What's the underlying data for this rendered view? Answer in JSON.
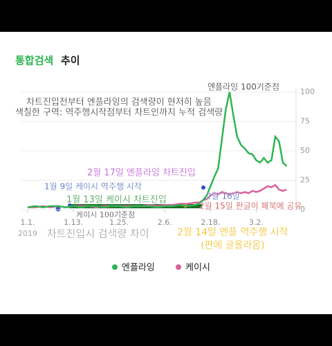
{
  "chart_data": {
    "type": "line",
    "title_parts": [
      "통합검색",
      "추이"
    ],
    "x": [
      0,
      2,
      4,
      6,
      8,
      10,
      12,
      14,
      16,
      18,
      20,
      22,
      24,
      26,
      28,
      30,
      32,
      34,
      36,
      38,
      40,
      42,
      44,
      45,
      46,
      47,
      48,
      49,
      50,
      51,
      52,
      53,
      54,
      55,
      56,
      57,
      58,
      59,
      60,
      61,
      62,
      63,
      64,
      65,
      66,
      67,
      68
    ],
    "xlim": [
      0,
      69
    ],
    "xticks": [
      {
        "value": 0,
        "label": "1.1."
      },
      {
        "value": 12,
        "label": "1.13."
      },
      {
        "value": 24,
        "label": "1.25."
      },
      {
        "value": 36,
        "label": "2.6."
      },
      {
        "value": 48,
        "label": "2.18."
      },
      {
        "value": 60,
        "label": "3.2."
      }
    ],
    "x_year": "2019",
    "ylim": [
      0,
      100
    ],
    "yticks": [
      0,
      25,
      50,
      75,
      100
    ],
    "grid": true,
    "series": [
      {
        "name": "엔플라잉",
        "color": "#2db552",
        "values": [
          2,
          3,
          2,
          3,
          3,
          2,
          3,
          2,
          3,
          3,
          2,
          3,
          3,
          2,
          3,
          3,
          3,
          2,
          3,
          3,
          4,
          3,
          4,
          5,
          8,
          12,
          20,
          28,
          35,
          60,
          85,
          100,
          80,
          62,
          55,
          52,
          48,
          47,
          42,
          40,
          44,
          40,
          42,
          62,
          58,
          40,
          37
        ]
      },
      {
        "name": "케이시",
        "color": "#d8609c",
        "values": [
          2,
          2,
          3,
          2,
          3,
          2,
          3,
          3,
          3,
          2,
          3,
          3,
          3,
          3,
          3,
          3,
          4,
          3,
          4,
          4,
          5,
          5,
          6,
          6,
          8,
          9,
          12,
          14,
          13,
          15,
          14,
          13,
          14,
          15,
          14,
          15,
          14,
          16,
          15,
          16,
          18,
          20,
          19,
          21,
          17,
          16,
          17
        ]
      }
    ],
    "annotations": [
      {
        "text": "엔플라잉 100기준점",
        "color": "#111111"
      },
      {
        "text": "차트진입전부터 엔플라잉의 검색량이 현저히 높음",
        "color": "#222222"
      },
      {
        "text": "색칠한 구역: 역주행시작점부터 차트인까지 누적 검색량",
        "color": "#222222"
      },
      {
        "text": "2월 17일 엔플라잉 차트진입",
        "color": "#b03ad0"
      },
      {
        "text": "1월 9일 케이시 역주행 시작",
        "color": "#2f4fb8"
      },
      {
        "text": "1월 13일 케이시 차트진입",
        "color": "#1f8a2e"
      },
      {
        "text": "2월 16일",
        "color": "#2f4fb8"
      },
      {
        "text": "2월 15일 판글이 페북에 공유",
        "color": "#c0282e"
      },
      {
        "text": "케이시 100기준점",
        "color": "#222222"
      },
      {
        "text": "차트진입시 검색량 차이",
        "color": "#9a9a9a"
      },
      {
        "text": "2월 14일 엔플 역주행 시작",
        "color": "#f0b400"
      },
      {
        "text": "(판에 글올라옴)",
        "color": "#f0b400"
      }
    ]
  }
}
